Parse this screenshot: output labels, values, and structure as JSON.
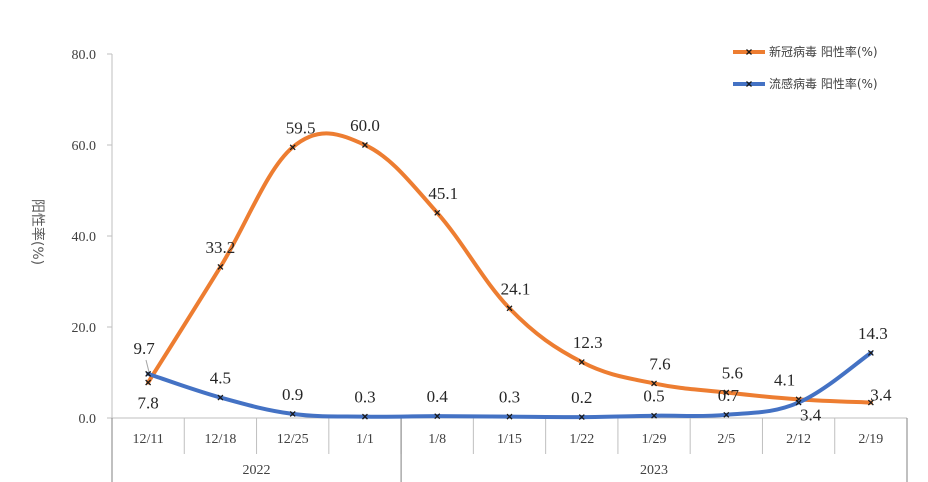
{
  "chart_data": {
    "type": "line",
    "categories": [
      "12/11",
      "12/18",
      "12/25",
      "1/1",
      "1/8",
      "1/15",
      "1/22",
      "1/29",
      "2/5",
      "2/12",
      "2/19"
    ],
    "groups": [
      {
        "label": "2022",
        "span": 4
      },
      {
        "label": "2023",
        "span": 7
      }
    ],
    "series": [
      {
        "name": "新冠病毒 阳性率(%)",
        "color": "#ED7D31",
        "values": [
          7.8,
          33.2,
          59.5,
          60.0,
          45.1,
          24.1,
          12.3,
          7.6,
          5.6,
          4.1,
          3.4
        ],
        "labels": [
          "7.8",
          "33.2",
          "59.5",
          "60.0",
          "45.1",
          "24.1",
          "12.3",
          "7.6",
          "5.6",
          "4.1",
          "3.4"
        ]
      },
      {
        "name": "流感病毒 阳性率(%)",
        "color": "#4472C4",
        "values": [
          9.7,
          4.5,
          0.9,
          0.3,
          0.4,
          0.3,
          0.2,
          0.5,
          0.7,
          3.4,
          14.3
        ],
        "labels": [
          "9.7",
          "4.5",
          "0.9",
          "0.3",
          "0.4",
          "0.3",
          "0.2",
          "0.5",
          "0.7",
          "3.4",
          "14.3"
        ]
      }
    ],
    "ylabel": "阳性率(%)",
    "ylim": [
      0,
      80
    ],
    "yticks": [
      0,
      20,
      40,
      60,
      80
    ],
    "ytick_labels": [
      "0.0",
      "20.0",
      "40.0",
      "60.0",
      "80.0"
    ],
    "grid": false,
    "legend": "top-right",
    "smooth": true
  }
}
